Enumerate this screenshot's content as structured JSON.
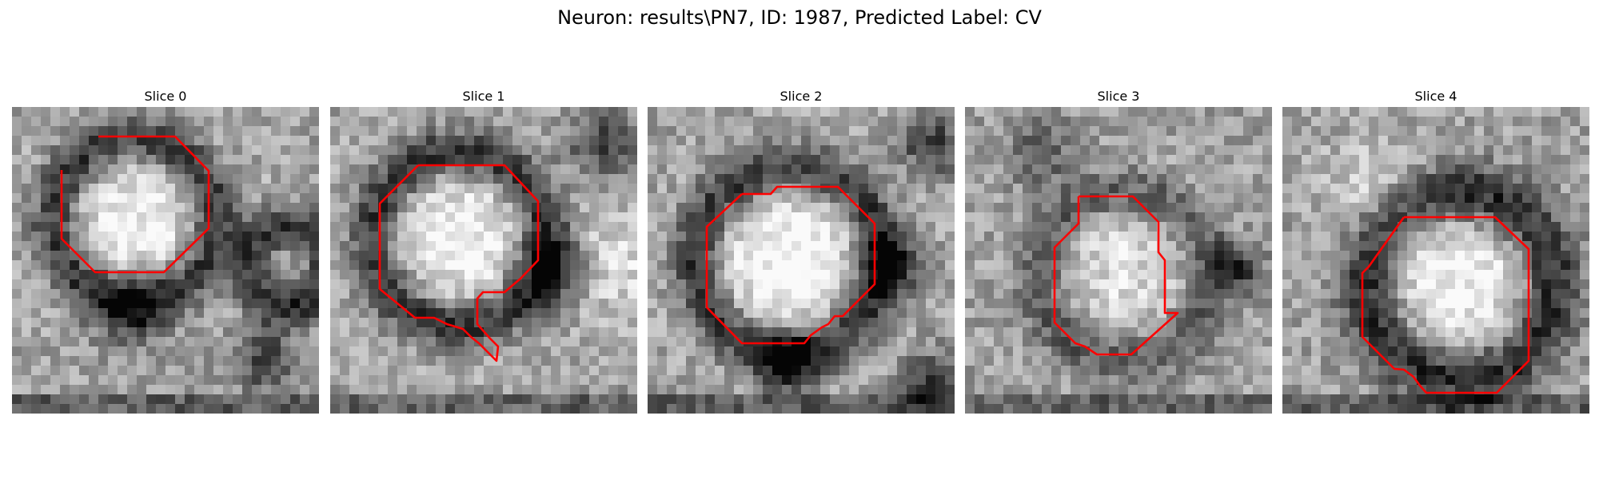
{
  "figure": {
    "title": "Neuron: results\\PN7, ID: 1987, Predicted Label: CV"
  },
  "panels": [
    {
      "title": "Slice 0"
    },
    {
      "title": "Slice 1"
    },
    {
      "title": "Slice 2"
    },
    {
      "title": "Slice 3"
    },
    {
      "title": "Slice 4"
    }
  ],
  "colors": {
    "contour": "#ff0000",
    "background": "#ffffff",
    "image_colormap": "grayscale"
  }
}
